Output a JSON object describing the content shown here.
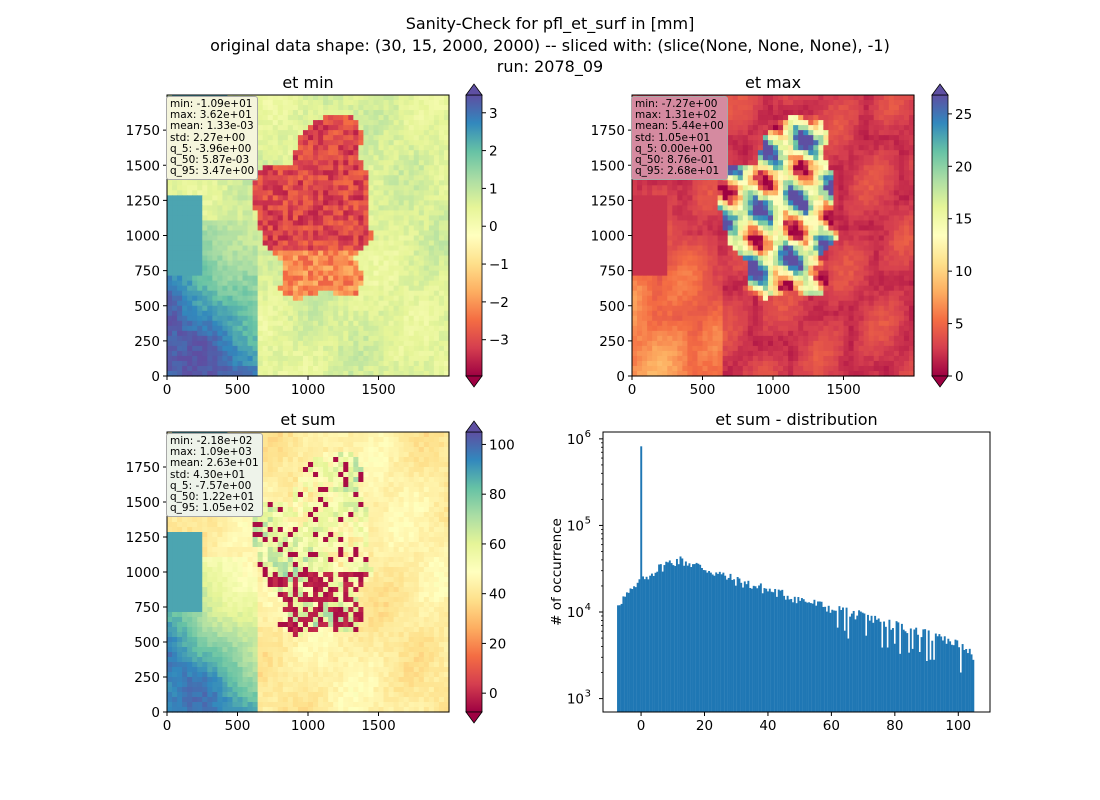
{
  "title_lines": [
    "Sanity-Check for pfl_et_surf in [mm]",
    "original data shape: (30, 15, 2000, 2000) -- sliced with: (slice(None, None, None), -1)",
    "run: 2078_09"
  ],
  "colormap": {
    "name": "Spectral",
    "stops": [
      "#9e0142",
      "#d53e4f",
      "#f46d43",
      "#fdae61",
      "#fee08b",
      "#ffffbf",
      "#e6f598",
      "#abdda4",
      "#66c2a5",
      "#3288bd",
      "#5e4fa2"
    ]
  },
  "chart_data": [
    {
      "type": "heatmap",
      "title": "et min",
      "x_ticks": [
        0,
        500,
        1000,
        1500
      ],
      "y_ticks": [
        0,
        250,
        500,
        750,
        1000,
        1250,
        1500,
        1750
      ],
      "xlim": [
        0,
        2000
      ],
      "ylim": [
        0,
        2000
      ],
      "colorbar": {
        "min": -3.96,
        "max": 3.47,
        "ticks": [
          -3,
          -2,
          -1,
          0,
          1,
          2,
          3
        ],
        "tick_labels": [
          "−3",
          "−2",
          "−1",
          "0",
          "1",
          "2",
          "3"
        ],
        "extend": "both"
      },
      "stats_box_color": "#f5f5dc",
      "stats": [
        "min: -1.09e+01",
        "max: 3.62e+01",
        "mean: 1.33e-03",
        "std: 2.27e+00",
        "q_5: -3.96e+00",
        "q_50: 5.87e-03",
        "q_95: 3.47e+00"
      ]
    },
    {
      "type": "heatmap",
      "title": "et max",
      "x_ticks": [
        0,
        500,
        1000,
        1500
      ],
      "y_ticks": [
        0,
        250,
        500,
        750,
        1000,
        1250,
        1500,
        1750
      ],
      "xlim": [
        0,
        2000
      ],
      "ylim": [
        0,
        2000
      ],
      "colorbar": {
        "min": 0,
        "max": 26.8,
        "ticks": [
          0,
          5,
          10,
          15,
          20,
          25
        ],
        "tick_labels": [
          "0",
          "5",
          "10",
          "15",
          "20",
          "25"
        ],
        "extend": "both"
      },
      "stats_box_color": "#d58aa0",
      "stats": [
        "min: -7.27e+00",
        "max: 1.31e+02",
        "mean: 5.44e+00",
        "std: 1.05e+01",
        "q_5: 0.00e+00",
        "q_50: 8.76e-01",
        "q_95: 2.68e+01"
      ]
    },
    {
      "type": "heatmap",
      "title": "et sum",
      "x_ticks": [
        0,
        500,
        1000,
        1500
      ],
      "y_ticks": [
        0,
        250,
        500,
        750,
        1000,
        1250,
        1500,
        1750
      ],
      "xlim": [
        0,
        2000
      ],
      "ylim": [
        0,
        2000
      ],
      "colorbar": {
        "min": -7.57,
        "max": 105,
        "ticks": [
          0,
          20,
          40,
          60,
          80,
          100
        ],
        "tick_labels": [
          "0",
          "20",
          "40",
          "60",
          "80",
          "100"
        ],
        "extend": "both"
      },
      "stats_box_color": "#eef3ea",
      "stats": [
        "min: -2.18e+02",
        "max: 1.09e+03",
        "mean: 2.63e+01",
        "std: 4.30e+01",
        "q_5: -7.57e+00",
        "q_50: 1.22e+01",
        "q_95: 1.05e+02"
      ]
    },
    {
      "type": "bar",
      "title": "et sum - distribution",
      "ylabel": "# of occurrence",
      "xlabel": "",
      "yscale": "log",
      "xlim": [
        -12,
        110
      ],
      "ylim": [
        700,
        1200000
      ],
      "x_ticks": [
        0,
        20,
        40,
        60,
        80,
        100
      ],
      "y_ticks": [
        1000,
        10000,
        100000,
        1000000
      ],
      "y_tick_labels": [
        [
          "10",
          "3"
        ],
        [
          "10",
          "4"
        ],
        [
          "10",
          "5"
        ],
        [
          "10",
          "6"
        ]
      ],
      "color": "#1f77b4",
      "bins": {
        "start": -7.57,
        "end": 105,
        "count": 200
      },
      "spike": {
        "x": 0,
        "count": 820000
      },
      "envelope": [
        [
          -7.57,
          12500
        ],
        [
          -5,
          15000
        ],
        [
          0,
          22000
        ],
        [
          3,
          28000
        ],
        [
          8,
          36000
        ],
        [
          12,
          40000
        ],
        [
          18,
          34000
        ],
        [
          25,
          27000
        ],
        [
          30,
          23000
        ],
        [
          40,
          18000
        ],
        [
          50,
          14000
        ],
        [
          60,
          11000
        ],
        [
          70,
          9000
        ],
        [
          80,
          7000
        ],
        [
          90,
          5500
        ],
        [
          100,
          4200
        ],
        [
          105,
          3000
        ]
      ]
    }
  ]
}
